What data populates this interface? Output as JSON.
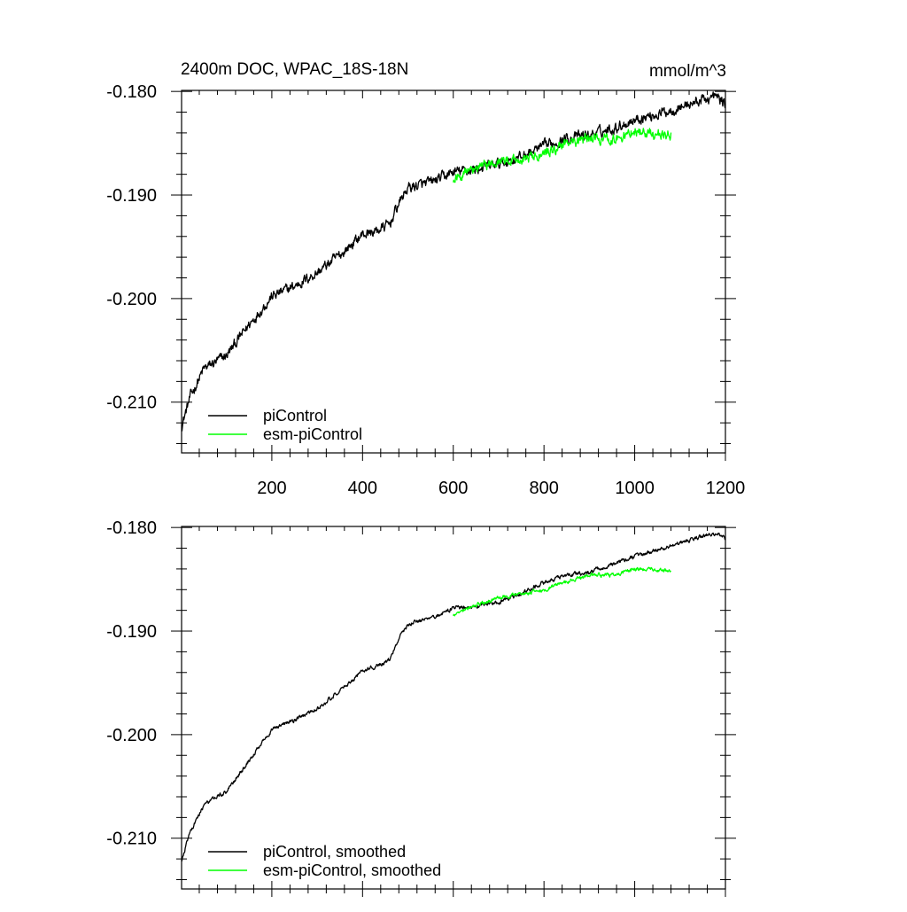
{
  "figure": {
    "title_left": "2400m DOC, WPAC_18S-18N",
    "units": "mmol/m^3"
  },
  "chart_data": [
    {
      "type": "line",
      "panel": "top",
      "title": "2400m DOC, WPAC_18S-18N",
      "units": "mmol/m^3",
      "xlabel": "",
      "ylabel": "",
      "xlim": [
        1,
        1200
      ],
      "ylim": [
        -0.2149,
        -0.1799
      ],
      "xticks": [
        200,
        400,
        600,
        800,
        1000,
        1200
      ],
      "xtick_labels": [
        "200",
        "400",
        "600",
        "800",
        "1000",
        "1200"
      ],
      "yticks": [
        -0.18,
        -0.19,
        -0.2,
        -0.21
      ],
      "ytick_labels": [
        "-0.180",
        "-0.190",
        "-0.200",
        "-0.210"
      ],
      "legend_placement": "bottom-left",
      "grid": false,
      "series": [
        {
          "name": "piControl",
          "color": "#000000",
          "noise": 0.0004,
          "x": [
            1,
            20,
            50,
            100,
            150,
            200,
            250,
            300,
            350,
            400,
            430,
            460,
            480,
            500,
            550,
            600,
            650,
            700,
            750,
            800,
            850,
            900,
            950,
            1000,
            1050,
            1100,
            1150,
            1180,
            1200
          ],
          "y": [
            -0.2123,
            -0.2095,
            -0.2068,
            -0.2055,
            -0.2025,
            -0.1998,
            -0.1988,
            -0.1975,
            -0.1958,
            -0.1938,
            -0.1935,
            -0.1928,
            -0.1908,
            -0.1893,
            -0.1888,
            -0.1878,
            -0.1875,
            -0.187,
            -0.1863,
            -0.1853,
            -0.1845,
            -0.1842,
            -0.1836,
            -0.1827,
            -0.1822,
            -0.1815,
            -0.1808,
            -0.1805,
            -0.1812
          ]
        },
        {
          "name": "esm-piControl",
          "color": "#00ff00",
          "noise": 0.0004,
          "x": [
            600,
            650,
            700,
            750,
            800,
            850,
            900,
            950,
            1000,
            1050,
            1080
          ],
          "y": [
            -0.1884,
            -0.1874,
            -0.1867,
            -0.1865,
            -0.186,
            -0.185,
            -0.1845,
            -0.1846,
            -0.1838,
            -0.1842,
            -0.1841
          ]
        }
      ]
    },
    {
      "type": "line",
      "panel": "bottom",
      "title": "",
      "xlabel": "",
      "ylabel": "",
      "xlim": [
        1,
        1200
      ],
      "ylim": [
        -0.2149,
        -0.1799
      ],
      "xticks": [
        200,
        400,
        600,
        800,
        1000,
        1200
      ],
      "xtick_labels": [],
      "yticks": [
        -0.18,
        -0.19,
        -0.2,
        -0.21
      ],
      "ytick_labels": [
        "-0.180",
        "-0.190",
        "-0.200",
        "-0.210"
      ],
      "legend_placement": "bottom-left",
      "grid": false,
      "series": [
        {
          "name": "piControl, smoothed",
          "color": "#000000",
          "noise": 0.00015,
          "x": [
            1,
            20,
            50,
            100,
            150,
            200,
            250,
            300,
            350,
            400,
            430,
            460,
            480,
            500,
            550,
            600,
            650,
            700,
            750,
            800,
            850,
            900,
            950,
            1000,
            1050,
            1100,
            1150,
            1180,
            1200
          ],
          "y": [
            -0.2121,
            -0.2094,
            -0.2068,
            -0.2055,
            -0.2025,
            -0.1995,
            -0.1986,
            -0.1975,
            -0.1958,
            -0.1938,
            -0.1934,
            -0.1928,
            -0.1908,
            -0.1893,
            -0.1888,
            -0.1878,
            -0.1876,
            -0.1872,
            -0.1864,
            -0.1853,
            -0.1846,
            -0.1843,
            -0.1836,
            -0.1828,
            -0.1822,
            -0.1815,
            -0.1808,
            -0.1805,
            -0.1811
          ]
        },
        {
          "name": "esm-piControl, smoothed",
          "color": "#00ff00",
          "noise": 0.00015,
          "x": [
            600,
            650,
            700,
            750,
            800,
            850,
            900,
            950,
            1000,
            1050,
            1080
          ],
          "y": [
            -0.1884,
            -0.1875,
            -0.1868,
            -0.1864,
            -0.186,
            -0.1852,
            -0.1846,
            -0.1846,
            -0.184,
            -0.1841,
            -0.1842
          ]
        }
      ]
    }
  ]
}
